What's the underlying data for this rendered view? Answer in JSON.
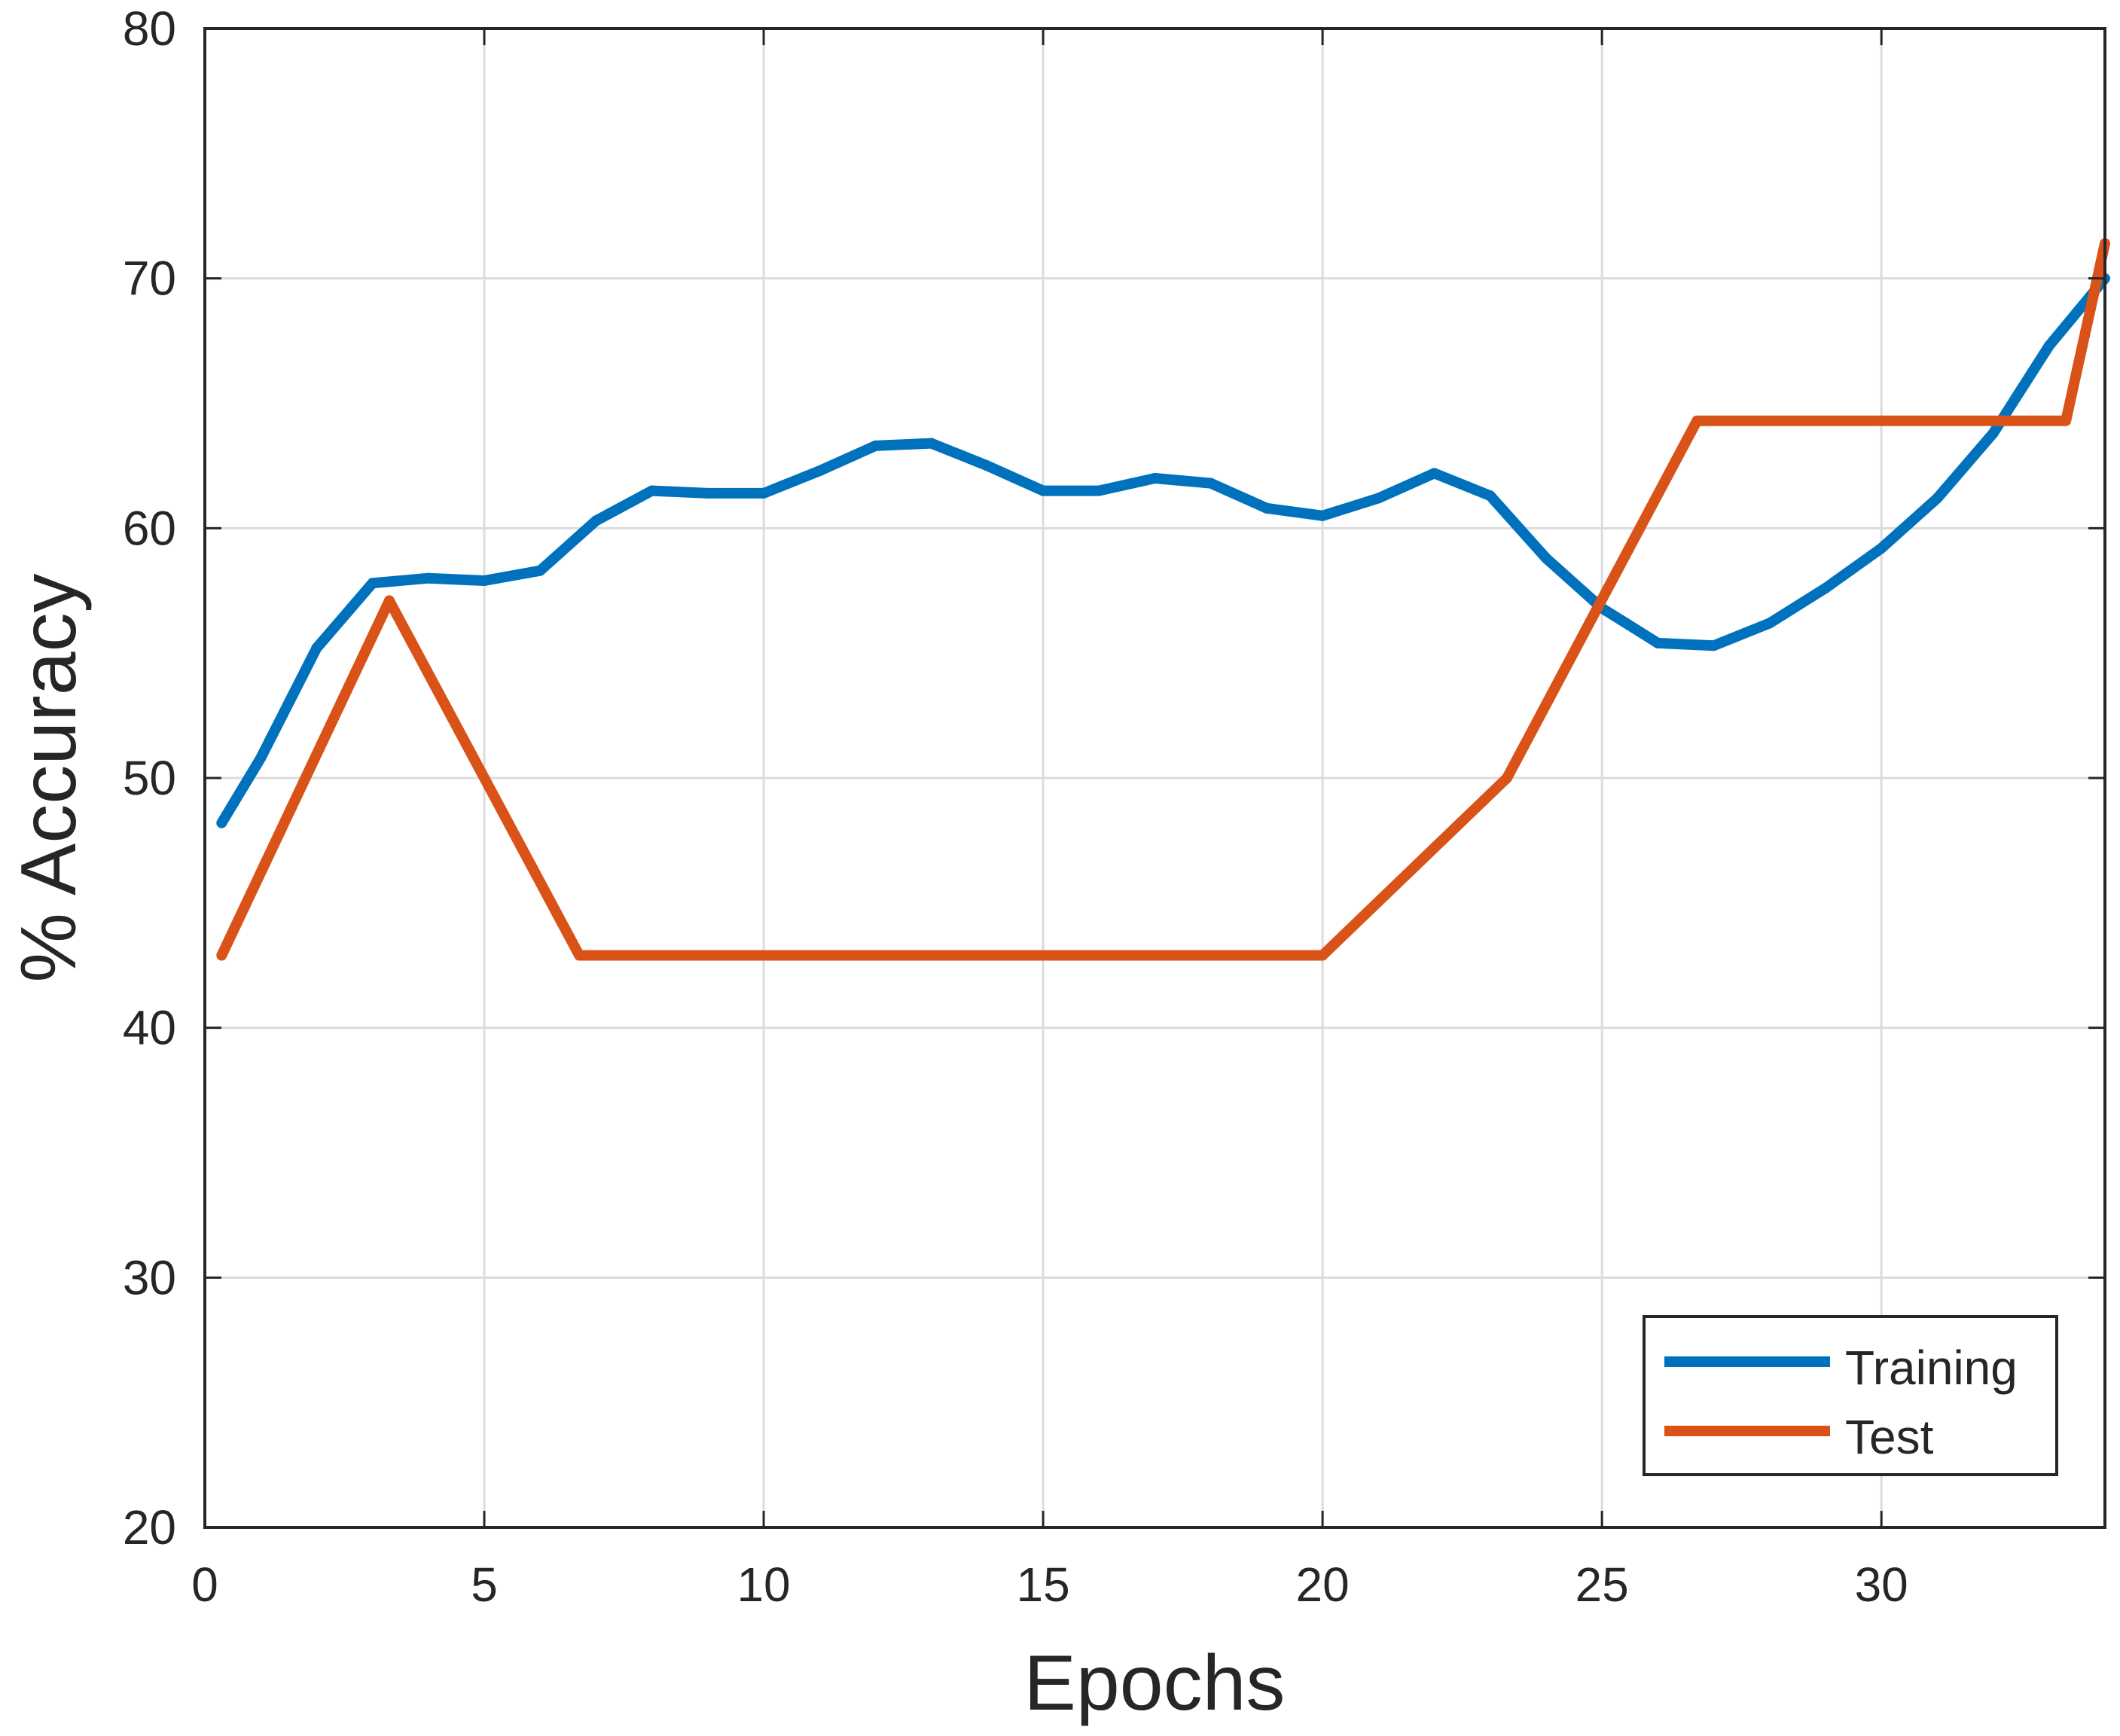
{
  "chart_data": {
    "type": "line",
    "title": "",
    "xlabel": "Epochs",
    "ylabel": "% Accuracy",
    "xlim": [
      0,
      34
    ],
    "ylim": [
      20,
      80
    ],
    "xticks": [
      0,
      5,
      10,
      15,
      20,
      25,
      30
    ],
    "yticks": [
      20,
      30,
      40,
      50,
      60,
      70,
      80
    ],
    "grid": true,
    "legend_position": "bottom-right",
    "series": [
      {
        "name": "Training",
        "color": "#0072BD",
        "x": [
          0.3,
          1,
          2,
          3,
          4,
          5,
          6,
          7,
          8,
          9,
          10,
          11,
          12,
          13,
          14,
          15,
          16,
          17,
          18,
          19,
          20,
          21,
          22,
          23,
          24,
          25,
          26,
          27,
          28,
          29,
          30,
          31,
          32,
          33,
          34
        ],
        "values": [
          48.2,
          50.8,
          55.2,
          57.8,
          58.0,
          57.9,
          58.3,
          60.3,
          61.5,
          61.4,
          61.4,
          62.3,
          63.3,
          63.4,
          62.5,
          61.5,
          61.5,
          62.0,
          61.8,
          60.8,
          60.5,
          61.2,
          62.2,
          61.3,
          58.8,
          56.8,
          55.4,
          55.3,
          56.2,
          57.6,
          59.2,
          61.2,
          63.8,
          67.3,
          70.0
        ]
      },
      {
        "name": "Test",
        "color": "#D95319",
        "x": [
          0.3,
          3.3,
          6.7,
          20.0,
          23.3,
          26.7,
          33.3,
          34.0
        ],
        "values": [
          42.9,
          57.1,
          42.9,
          42.9,
          50.0,
          64.3,
          64.3,
          71.4
        ]
      }
    ]
  }
}
